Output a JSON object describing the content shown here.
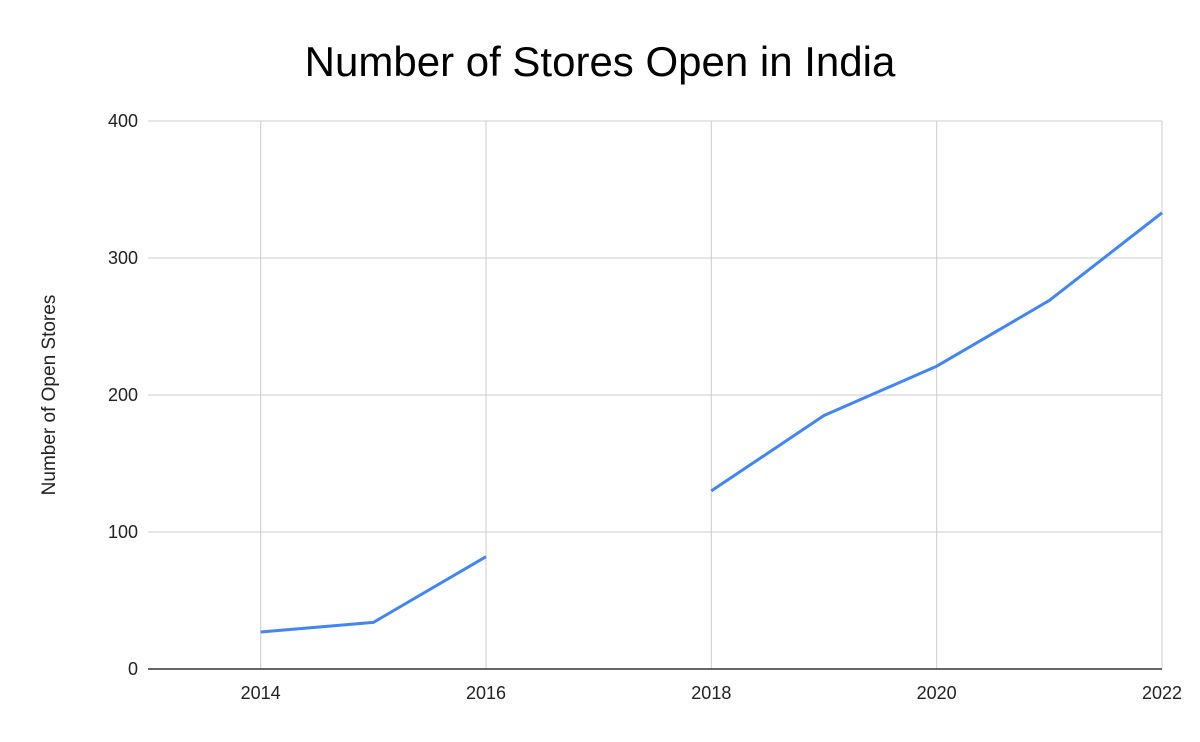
{
  "chart_data": {
    "type": "line",
    "title": "Number of Stores Open in India",
    "xlabel": "",
    "ylabel": "Number of Open Stores",
    "x": [
      2014,
      2015,
      2016,
      2017,
      2018,
      2019,
      2020,
      2021,
      2022
    ],
    "series": [
      {
        "values": [
          27,
          34,
          82,
          null,
          130,
          185,
          221,
          269,
          333
        ],
        "color": "#4285f4"
      }
    ],
    "xlim": [
      2013,
      2022
    ],
    "ylim": [
      0,
      400
    ],
    "xticks": [
      2014,
      2016,
      2018,
      2020,
      2022
    ],
    "yticks": [
      0,
      100,
      200,
      300,
      400
    ],
    "xtick_labels": [
      "2014",
      "2016",
      "2018",
      "2020",
      "2022"
    ],
    "ytick_labels": [
      "0",
      "100",
      "200",
      "300",
      "400"
    ],
    "grid": true,
    "legend": "none"
  }
}
